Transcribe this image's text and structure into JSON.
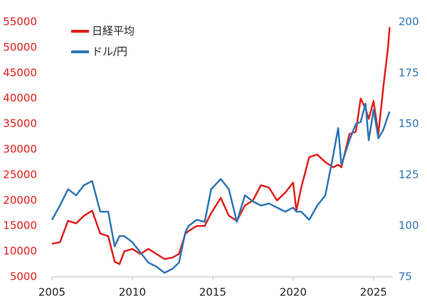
{
  "chart_data": {
    "type": "line",
    "x": [
      2005.0,
      2005.5,
      2006.0,
      2006.5,
      2007.0,
      2007.5,
      2008.0,
      2008.5,
      2008.9,
      2009.2,
      2009.5,
      2010.0,
      2010.5,
      2011.0,
      2011.5,
      2012.0,
      2012.5,
      2012.9,
      2013.3,
      2013.5,
      2014.0,
      2014.5,
      2014.9,
      2015.5,
      2016.0,
      2016.5,
      2017.0,
      2017.5,
      2018.0,
      2018.5,
      2019.0,
      2019.5,
      2020.0,
      2020.2,
      2020.5,
      2021.0,
      2021.5,
      2022.0,
      2022.5,
      2022.8,
      2023.0,
      2023.5,
      2023.9,
      2024.2,
      2024.5,
      2024.7,
      2025.0,
      2025.3,
      2025.6,
      2025.9,
      2026.0
    ],
    "series": [
      {
        "name": "日経平均",
        "color": "#e0201b",
        "values": [
          11500,
          11800,
          16000,
          15500,
          17000,
          18000,
          13500,
          13000,
          8000,
          7500,
          10000,
          10500,
          9500,
          10500,
          9500,
          8500,
          8800,
          9500,
          13500,
          14000,
          15000,
          15000,
          17500,
          20500,
          17000,
          16000,
          19000,
          20000,
          23000,
          22500,
          20000,
          21500,
          23500,
          18000,
          22500,
          28500,
          29000,
          27500,
          26500,
          27000,
          26500,
          33000,
          33500,
          40000,
          38000,
          36000,
          39500,
          33000,
          42000,
          50000,
          54000
        ]
      },
      {
        "name": "ドル/円",
        "color": "#2e75b6",
        "axis": "y2",
        "values": [
          103,
          110,
          118,
          115,
          120,
          122,
          107,
          107,
          90,
          95,
          95,
          92,
          87,
          82,
          80,
          77,
          79,
          82,
          97,
          100,
          103,
          102,
          118,
          123,
          118,
          102,
          115,
          112,
          110,
          111,
          109,
          107,
          109,
          107,
          107,
          103,
          110,
          115,
          135,
          148,
          130,
          142,
          150,
          151,
          160,
          142,
          157,
          143,
          147,
          154,
          156
        ]
      }
    ],
    "xlim": [
      2005,
      2026.2
    ],
    "xticks": [
      2005,
      2010,
      2015,
      2020,
      2025
    ],
    "ylim": [
      5000,
      55000
    ],
    "yticks": [
      5000,
      10000,
      15000,
      20000,
      25000,
      30000,
      35000,
      40000,
      45000,
      50000,
      55000
    ],
    "y2lim": [
      75,
      200
    ],
    "y2ticks": [
      75,
      100,
      125,
      150,
      175,
      200
    ],
    "legend": "upper-left"
  }
}
